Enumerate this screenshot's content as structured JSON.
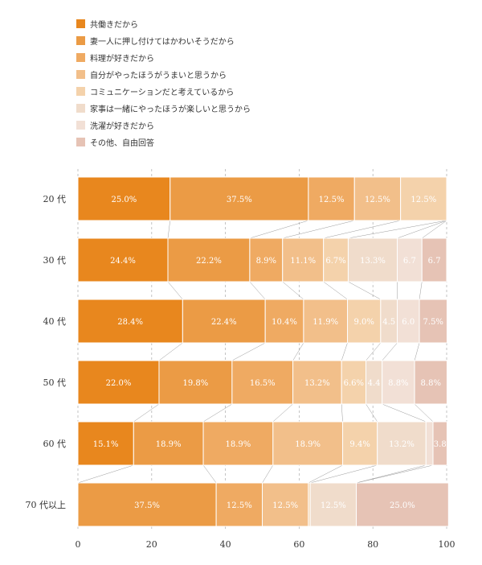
{
  "chart_data": {
    "type": "bar",
    "orientation": "horizontal",
    "stacked": true,
    "categories": [
      "20 代",
      "30 代",
      "40 代",
      "50 代",
      "60 代",
      "70 代以上"
    ],
    "series": [
      {
        "name": "共働きだから",
        "color": "#e8871e",
        "values": [
          25.0,
          24.4,
          28.4,
          22.0,
          15.1,
          0
        ],
        "labels": [
          "25.0%",
          "24.4%",
          "28.4%",
          "22.0%",
          "15.1%",
          ""
        ]
      },
      {
        "name": "妻一人に押し付けてはかわいそうだから",
        "color": "#eb9b45",
        "values": [
          37.5,
          22.2,
          22.4,
          19.8,
          18.9,
          37.5
        ],
        "labels": [
          "37.5%",
          "22.2%",
          "22.4%",
          "19.8%",
          "18.9%",
          "37.5%"
        ]
      },
      {
        "name": "料理が好きだから",
        "color": "#efaa62",
        "values": [
          12.5,
          8.9,
          10.4,
          16.5,
          18.9,
          12.5
        ],
        "labels": [
          "12.5%",
          "8.9%",
          "10.4%",
          "16.5%",
          "18.9%",
          "12.5%"
        ]
      },
      {
        "name": "自分がやったほうがうまいと思うから",
        "color": "#f2bf8a",
        "values": [
          12.5,
          11.1,
          11.9,
          13.2,
          18.9,
          12.5
        ],
        "labels": [
          "12.5%",
          "11.1%",
          "11.9%",
          "13.2%",
          "18.9%",
          "12.5%"
        ]
      },
      {
        "name": "コミュニケーションだと考えているから",
        "color": "#f4d2ab",
        "values": [
          12.5,
          6.7,
          9.0,
          6.6,
          9.4,
          0.5
        ],
        "labels": [
          "12.5%",
          "6.7%",
          "9.0%",
          "6.6%",
          "9.4%",
          ""
        ]
      },
      {
        "name": "家事は一緒にやったほうが楽しいと思うから",
        "color": "#f0dccb",
        "values": [
          0,
          13.3,
          4.5,
          4.4,
          13.2,
          12.5
        ],
        "labels": [
          "",
          "13.3%",
          "4.5",
          "4.4",
          "13.2%",
          "12.5%"
        ]
      },
      {
        "name": "洗濯が好きだから",
        "color": "#f2e0d6",
        "values": [
          0,
          6.7,
          6.0,
          8.8,
          1.9,
          0
        ],
        "labels": [
          "",
          "6.7",
          "6.0",
          "8.8%",
          "",
          ""
        ]
      },
      {
        "name": "その他、自由回答",
        "color": "#e6c3b5",
        "values": [
          0,
          6.7,
          7.5,
          8.8,
          3.8,
          25.0
        ],
        "labels": [
          "",
          "6.7",
          "7.5%",
          "8.8%",
          "3.8",
          "25.0%"
        ]
      }
    ],
    "xlim": [
      0,
      100
    ],
    "xticks": [
      0,
      20,
      40,
      60,
      80,
      100
    ],
    "grid": true,
    "legend": "top-left"
  }
}
